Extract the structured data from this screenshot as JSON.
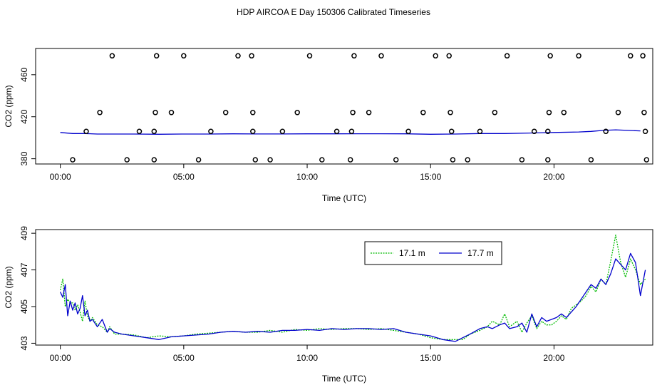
{
  "figure": {
    "title": "HDP AIRCOA E  Day 150306  Calibrated Timeseries"
  },
  "chart_data": [
    {
      "type": "line",
      "xlabel": "Time (UTC)",
      "ylabel": "CO2 (ppm)",
      "x_unit": "hours",
      "xlim": [
        -1.0,
        24.0
      ],
      "ylim": [
        375,
        485
      ],
      "x_ticks": [
        0,
        5,
        10,
        15,
        20
      ],
      "x_tick_labels": [
        "00:00",
        "05:00",
        "10:00",
        "15:00",
        "20:00"
      ],
      "y_ticks": [
        380,
        420,
        460
      ],
      "y_tick_labels": [
        "380",
        "420",
        "460"
      ],
      "series": [
        {
          "color": "#0000cc",
          "x": [
            0.0,
            0.5,
            1.0,
            1.5,
            2.0,
            3.0,
            4.0,
            5.0,
            6.0,
            7.0,
            8.0,
            9.0,
            10.0,
            11.0,
            12.0,
            13.0,
            14.0,
            15.0,
            16.0,
            17.0,
            18.0,
            19.0,
            20.0,
            21.0,
            21.5,
            22.0,
            22.5,
            23.0,
            23.5
          ],
          "values": [
            405,
            404,
            404,
            403.5,
            403.5,
            403.5,
            403.3,
            403.5,
            403.5,
            403.7,
            403.6,
            403.6,
            403.7,
            403.7,
            403.8,
            403.8,
            403.7,
            403.3,
            403.5,
            404,
            404,
            404.5,
            405,
            405.5,
            406,
            407,
            407.5,
            407,
            406.5
          ]
        }
      ],
      "markers": {
        "shape": "circle-open",
        "points": [
          {
            "x": 0.5,
            "y": 379
          },
          {
            "x": 1.05,
            "y": 406
          },
          {
            "x": 1.6,
            "y": 424
          },
          {
            "x": 2.1,
            "y": 478
          },
          {
            "x": 2.7,
            "y": 379
          },
          {
            "x": 3.2,
            "y": 406
          },
          {
            "x": 3.8,
            "y": 379
          },
          {
            "x": 3.8,
            "y": 406
          },
          {
            "x": 3.85,
            "y": 424
          },
          {
            "x": 3.9,
            "y": 478
          },
          {
            "x": 4.5,
            "y": 424
          },
          {
            "x": 5.0,
            "y": 478
          },
          {
            "x": 5.6,
            "y": 379
          },
          {
            "x": 6.1,
            "y": 406
          },
          {
            "x": 6.7,
            "y": 424
          },
          {
            "x": 7.2,
            "y": 478
          },
          {
            "x": 7.75,
            "y": 478
          },
          {
            "x": 7.8,
            "y": 424
          },
          {
            "x": 7.8,
            "y": 406
          },
          {
            "x": 7.9,
            "y": 379
          },
          {
            "x": 8.5,
            "y": 379
          },
          {
            "x": 9.0,
            "y": 406
          },
          {
            "x": 9.6,
            "y": 424
          },
          {
            "x": 10.1,
            "y": 478
          },
          {
            "x": 10.6,
            "y": 379
          },
          {
            "x": 11.2,
            "y": 406
          },
          {
            "x": 11.75,
            "y": 379
          },
          {
            "x": 11.8,
            "y": 406
          },
          {
            "x": 11.85,
            "y": 424
          },
          {
            "x": 11.9,
            "y": 478
          },
          {
            "x": 12.5,
            "y": 424
          },
          {
            "x": 13.0,
            "y": 478
          },
          {
            "x": 13.6,
            "y": 379
          },
          {
            "x": 14.1,
            "y": 406
          },
          {
            "x": 14.7,
            "y": 424
          },
          {
            "x": 15.2,
            "y": 478
          },
          {
            "x": 15.75,
            "y": 478
          },
          {
            "x": 15.8,
            "y": 424
          },
          {
            "x": 15.85,
            "y": 406
          },
          {
            "x": 15.9,
            "y": 379
          },
          {
            "x": 16.5,
            "y": 379
          },
          {
            "x": 17.0,
            "y": 406
          },
          {
            "x": 17.6,
            "y": 424
          },
          {
            "x": 18.1,
            "y": 478
          },
          {
            "x": 18.7,
            "y": 379
          },
          {
            "x": 19.2,
            "y": 406
          },
          {
            "x": 19.75,
            "y": 379
          },
          {
            "x": 19.75,
            "y": 406
          },
          {
            "x": 19.8,
            "y": 424
          },
          {
            "x": 19.85,
            "y": 478
          },
          {
            "x": 20.4,
            "y": 424
          },
          {
            "x": 21.0,
            "y": 478
          },
          {
            "x": 21.5,
            "y": 379
          },
          {
            "x": 22.1,
            "y": 406
          },
          {
            "x": 22.6,
            "y": 424
          },
          {
            "x": 23.1,
            "y": 478
          },
          {
            "x": 23.6,
            "y": 478
          },
          {
            "x": 23.65,
            "y": 424
          },
          {
            "x": 23.7,
            "y": 406
          },
          {
            "x": 23.75,
            "y": 379
          }
        ]
      },
      "grid": false,
      "legend": "none"
    },
    {
      "type": "line",
      "xlabel": "Time (UTC)",
      "ylabel": "CO2 (ppm)",
      "x_unit": "hours",
      "xlim": [
        -1.0,
        24.0
      ],
      "ylim": [
        402.9,
        409.2
      ],
      "x_ticks": [
        0,
        5,
        10,
        15,
        20
      ],
      "x_tick_labels": [
        "00:00",
        "05:00",
        "10:00",
        "15:00",
        "20:00"
      ],
      "y_ticks": [
        403,
        405,
        407,
        409
      ],
      "y_tick_labels": [
        "403",
        "405",
        "407",
        "409"
      ],
      "legend": "top-right",
      "grid": false,
      "series": [
        {
          "name": "17.1 m",
          "color": "#00bb00",
          "dash": "2,1.5",
          "x": [
            0.0,
            0.1,
            0.2,
            0.3,
            0.4,
            0.5,
            0.6,
            0.7,
            0.8,
            0.9,
            1.0,
            1.1,
            1.2,
            1.3,
            1.5,
            1.7,
            1.9,
            2.0,
            2.2,
            2.5,
            3.0,
            3.5,
            4.0,
            4.5,
            5.0,
            5.5,
            6.0,
            6.5,
            7.0,
            7.5,
            8.0,
            8.5,
            9.0,
            9.5,
            10.0,
            10.5,
            11.0,
            11.5,
            12.0,
            12.5,
            13.0,
            13.5,
            14.0,
            14.5,
            15.0,
            15.5,
            16.0,
            16.3,
            16.6,
            17.0,
            17.3,
            17.5,
            17.8,
            18.0,
            18.2,
            18.5,
            18.7,
            18.9,
            19.1,
            19.3,
            19.5,
            19.7,
            19.9,
            20.1,
            20.3,
            20.5,
            20.7,
            20.9,
            21.1,
            21.3,
            21.5,
            21.7,
            21.9,
            22.1,
            22.3,
            22.5,
            22.7,
            22.9,
            23.1,
            23.3,
            23.5,
            23.7
          ],
          "values": [
            405.9,
            406.5,
            405.0,
            405.4,
            405.2,
            405.2,
            404.8,
            405.1,
            404.7,
            404.2,
            405.3,
            404.5,
            404.2,
            404.4,
            404.0,
            403.9,
            403.6,
            403.9,
            403.5,
            403.5,
            403.45,
            403.3,
            403.4,
            403.35,
            403.4,
            403.5,
            403.55,
            403.6,
            403.65,
            403.6,
            403.6,
            403.7,
            403.6,
            403.75,
            403.7,
            403.8,
            403.75,
            403.8,
            403.8,
            403.75,
            403.8,
            403.7,
            403.6,
            403.5,
            403.3,
            403.2,
            403.2,
            403.2,
            403.5,
            403.7,
            403.9,
            404.2,
            404.0,
            404.6,
            403.9,
            404.2,
            403.6,
            404.1,
            404.5,
            403.8,
            404.2,
            404.0,
            404.0,
            404.2,
            404.5,
            404.3,
            404.9,
            405.1,
            405.3,
            405.6,
            406.1,
            405.8,
            406.5,
            406.2,
            407.5,
            408.9,
            407.4,
            406.6,
            407.6,
            407.0,
            406.2,
            406.5
          ]
        },
        {
          "name": "17.7 m",
          "color": "#0000cc",
          "dash": "",
          "x": [
            0.0,
            0.1,
            0.2,
            0.3,
            0.4,
            0.5,
            0.6,
            0.7,
            0.8,
            0.9,
            1.0,
            1.1,
            1.2,
            1.3,
            1.5,
            1.7,
            1.9,
            2.0,
            2.2,
            2.5,
            3.0,
            3.5,
            4.0,
            4.5,
            5.0,
            5.5,
            6.0,
            6.5,
            7.0,
            7.5,
            8.0,
            8.5,
            9.0,
            9.5,
            10.0,
            10.5,
            11.0,
            11.5,
            12.0,
            12.5,
            13.0,
            13.5,
            14.0,
            14.5,
            15.0,
            15.5,
            16.0,
            16.3,
            16.6,
            17.0,
            17.3,
            17.5,
            17.8,
            18.0,
            18.2,
            18.5,
            18.7,
            18.9,
            19.1,
            19.3,
            19.5,
            19.7,
            19.9,
            20.1,
            20.3,
            20.5,
            20.7,
            20.9,
            21.1,
            21.3,
            21.5,
            21.7,
            21.9,
            22.1,
            22.3,
            22.5,
            22.7,
            22.9,
            23.1,
            23.3,
            23.5,
            23.7
          ],
          "values": [
            405.8,
            405.5,
            406.2,
            404.5,
            405.3,
            404.8,
            405.2,
            404.6,
            404.9,
            405.6,
            404.5,
            404.8,
            404.2,
            404.3,
            403.9,
            404.3,
            403.6,
            403.8,
            403.6,
            403.5,
            403.4,
            403.3,
            403.2,
            403.35,
            403.4,
            403.45,
            403.5,
            403.6,
            403.65,
            403.6,
            403.65,
            403.6,
            403.7,
            403.7,
            403.75,
            403.7,
            403.8,
            403.75,
            403.8,
            403.8,
            403.75,
            403.8,
            403.6,
            403.5,
            403.4,
            403.2,
            403.1,
            403.3,
            403.5,
            403.8,
            403.9,
            403.8,
            404.0,
            404.1,
            403.8,
            403.9,
            404.1,
            403.6,
            404.6,
            403.9,
            404.4,
            404.2,
            404.3,
            404.4,
            404.6,
            404.4,
            404.7,
            405.0,
            405.4,
            405.8,
            406.2,
            406.0,
            406.5,
            406.2,
            406.8,
            407.6,
            407.3,
            407.0,
            407.9,
            407.4,
            405.6,
            407.0
          ]
        }
      ]
    }
  ]
}
